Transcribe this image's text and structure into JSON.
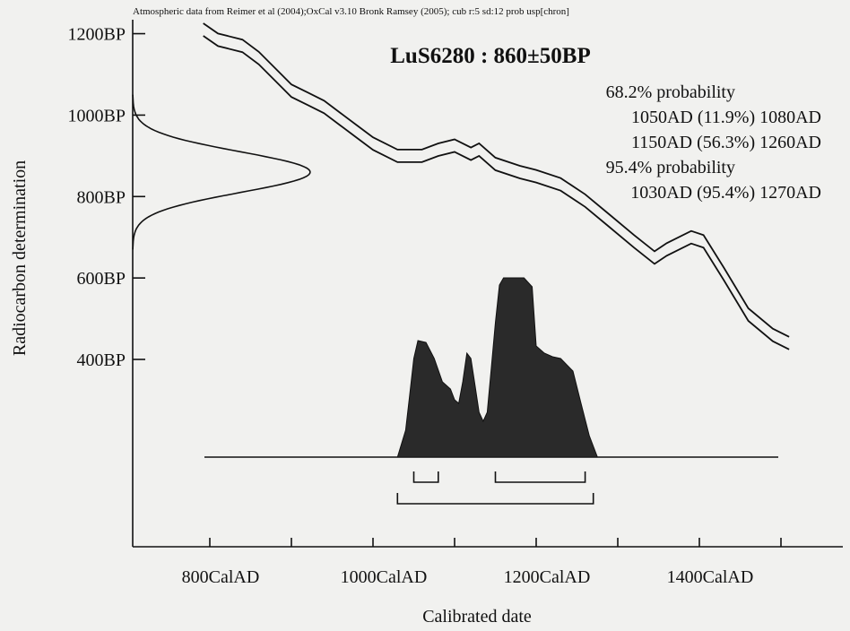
{
  "header": "Atmospheric data from Reimer et al (2004);OxCal v3.10 Bronk Ramsey (2005); cub r:5 sd:12 prob usp[chron]",
  "colors": {
    "ink": "#111111",
    "paper": "#f1f1ef",
    "fill": "#2a2a2a"
  },
  "chart_data": {
    "type": "area",
    "title": "LuS6280 : 860±50BP",
    "xlabel": "Calibrated date",
    "ylabel": "Radiocarbon determination",
    "xlim": [
      700,
      1550
    ],
    "ylim": [
      100,
      1260
    ],
    "x_ticks": [
      800,
      1000,
      1200,
      1400
    ],
    "x_tick_labels": [
      "800CalAD",
      "1000CalAD",
      "1200CalAD",
      "1400CalAD"
    ],
    "y_ticks": [
      400,
      600,
      800,
      1000,
      1200
    ],
    "y_tick_labels": [
      "400BP",
      "600BP",
      "800BP",
      "1000BP",
      "1200BP"
    ],
    "annotations": [
      "68.2% probability",
      "1050AD (11.9%) 1080AD",
      "1150AD (56.3%) 1260AD",
      "95.4% probability",
      "1030AD (95.4%) 1270AD"
    ],
    "radiocarbon_distribution": {
      "mean_bp": 860,
      "sd_bp": 50
    },
    "calibration_curve": [
      [
        792,
        1210
      ],
      [
        810,
        1185
      ],
      [
        840,
        1170
      ],
      [
        860,
        1140
      ],
      [
        880,
        1100
      ],
      [
        900,
        1060
      ],
      [
        920,
        1040
      ],
      [
        940,
        1020
      ],
      [
        960,
        990
      ],
      [
        980,
        960
      ],
      [
        1000,
        930
      ],
      [
        1030,
        900
      ],
      [
        1060,
        900
      ],
      [
        1080,
        915
      ],
      [
        1100,
        925
      ],
      [
        1120,
        905
      ],
      [
        1130,
        915
      ],
      [
        1150,
        880
      ],
      [
        1180,
        860
      ],
      [
        1200,
        850
      ],
      [
        1230,
        830
      ],
      [
        1260,
        790
      ],
      [
        1290,
        740
      ],
      [
        1320,
        690
      ],
      [
        1345,
        650
      ],
      [
        1360,
        670
      ],
      [
        1390,
        700
      ],
      [
        1405,
        690
      ],
      [
        1430,
        610
      ],
      [
        1460,
        510
      ],
      [
        1490,
        460
      ],
      [
        1510,
        440
      ]
    ],
    "calibrated_probability": [
      [
        1030,
        0.0
      ],
      [
        1040,
        0.15
      ],
      [
        1045,
        0.35
      ],
      [
        1050,
        0.55
      ],
      [
        1055,
        0.65
      ],
      [
        1065,
        0.64
      ],
      [
        1075,
        0.55
      ],
      [
        1085,
        0.42
      ],
      [
        1095,
        0.38
      ],
      [
        1100,
        0.32
      ],
      [
        1105,
        0.3
      ],
      [
        1110,
        0.42
      ],
      [
        1115,
        0.58
      ],
      [
        1120,
        0.55
      ],
      [
        1125,
        0.4
      ],
      [
        1130,
        0.25
      ],
      [
        1135,
        0.2
      ],
      [
        1140,
        0.25
      ],
      [
        1145,
        0.5
      ],
      [
        1150,
        0.75
      ],
      [
        1155,
        0.96
      ],
      [
        1160,
        1.0
      ],
      [
        1185,
        1.0
      ],
      [
        1195,
        0.95
      ],
      [
        1200,
        0.62
      ],
      [
        1210,
        0.58
      ],
      [
        1220,
        0.56
      ],
      [
        1230,
        0.55
      ],
      [
        1245,
        0.48
      ],
      [
        1255,
        0.3
      ],
      [
        1265,
        0.12
      ],
      [
        1275,
        0.0
      ]
    ],
    "ranges_68": [
      [
        1050,
        1080
      ],
      [
        1150,
        1260
      ]
    ],
    "ranges_95": [
      [
        1030,
        1270
      ]
    ]
  }
}
